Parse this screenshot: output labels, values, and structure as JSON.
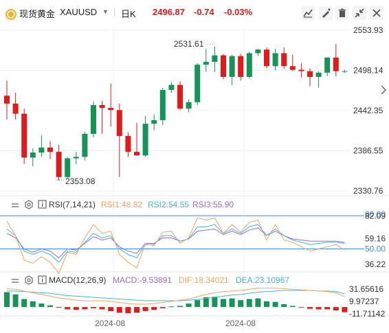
{
  "header": {
    "name": "现货黄金",
    "symbol": "XAUUSD",
    "period": "日K",
    "price": "2496.87",
    "change": "-0.74",
    "change_pct": "-0.03%"
  },
  "price_axis": [
    "2553.93",
    "2498.14",
    "2442.35",
    "2386.55",
    "2330.76"
  ],
  "high_label": "2531.61",
  "low_label": "2353.08",
  "rsi": {
    "name": "RSI(7,14,21)",
    "rsi1": "RSI1:48.82",
    "rsi2": "RSI2:54.55",
    "rsi3": "RSI3:55.90",
    "axis": [
      "80.00",
      "82.09",
      "59.16",
      "50.00",
      "36.22"
    ]
  },
  "macd": {
    "name": "MACD(12,26,9)",
    "macd": "MACD:-9.53891",
    "dif": "DIF:18.34021",
    "dea": "DEA:23.10967",
    "axis": [
      "31.65616",
      "9.97237",
      "-11.71142"
    ]
  },
  "x_labels": [
    "2024-08",
    "2024-08"
  ],
  "colors": {
    "up": "#159457",
    "down": "#e21a1a",
    "rsi1": "#f7a35c",
    "rsi2": "#3fb8d9",
    "rsi3": "#9b6bd1",
    "dif": "#f7a35c",
    "dea": "#3fb8d9",
    "ref_line": "#3d8df5"
  },
  "chart_data": {
    "type": "candlestick",
    "candles": [
      {
        "o": 2463,
        "h": 2484,
        "l": 2430,
        "c": 2452
      },
      {
        "o": 2452,
        "h": 2467,
        "l": 2430,
        "c": 2438
      },
      {
        "o": 2438,
        "h": 2445,
        "l": 2368,
        "c": 2377
      },
      {
        "o": 2377,
        "h": 2390,
        "l": 2365,
        "c": 2384
      },
      {
        "o": 2384,
        "h": 2408,
        "l": 2378,
        "c": 2391
      },
      {
        "o": 2391,
        "h": 2400,
        "l": 2375,
        "c": 2385
      },
      {
        "o": 2385,
        "h": 2395,
        "l": 2345,
        "c": 2350
      },
      {
        "o": 2350,
        "h": 2378,
        "l": 2348,
        "c": 2376
      },
      {
        "o": 2376,
        "h": 2385,
        "l": 2368,
        "c": 2378
      },
      {
        "o": 2378,
        "h": 2413,
        "l": 2373,
        "c": 2410
      },
      {
        "o": 2410,
        "h": 2455,
        "l": 2405,
        "c": 2450
      },
      {
        "o": 2450,
        "h": 2456,
        "l": 2410,
        "c": 2446
      },
      {
        "o": 2446,
        "h": 2480,
        "l": 2420,
        "c": 2443
      },
      {
        "o": 2443,
        "h": 2452,
        "l": 2350,
        "c": 2407
      },
      {
        "o": 2407,
        "h": 2412,
        "l": 2378,
        "c": 2385
      },
      {
        "o": 2385,
        "h": 2425,
        "l": 2380,
        "c": 2380
      },
      {
        "o": 2380,
        "h": 2435,
        "l": 2378,
        "c": 2424
      },
      {
        "o": 2424,
        "h": 2437,
        "l": 2415,
        "c": 2429
      },
      {
        "o": 2429,
        "h": 2474,
        "l": 2422,
        "c": 2471
      },
      {
        "o": 2471,
        "h": 2482,
        "l": 2467,
        "c": 2478
      },
      {
        "o": 2478,
        "h": 2483,
        "l": 2443,
        "c": 2445
      },
      {
        "o": 2445,
        "h": 2458,
        "l": 2440,
        "c": 2454
      },
      {
        "o": 2454,
        "h": 2508,
        "l": 2450,
        "c": 2506
      },
      {
        "o": 2506,
        "h": 2528,
        "l": 2496,
        "c": 2510
      },
      {
        "o": 2510,
        "h": 2531,
        "l": 2496,
        "c": 2519
      },
      {
        "o": 2519,
        "h": 2521,
        "l": 2486,
        "c": 2489
      },
      {
        "o": 2489,
        "h": 2520,
        "l": 2478,
        "c": 2518
      },
      {
        "o": 2518,
        "h": 2521,
        "l": 2484,
        "c": 2489
      },
      {
        "o": 2489,
        "h": 2524,
        "l": 2487,
        "c": 2522
      },
      {
        "o": 2522,
        "h": 2528,
        "l": 2518,
        "c": 2527
      },
      {
        "o": 2527,
        "h": 2530,
        "l": 2501,
        "c": 2504
      },
      {
        "o": 2504,
        "h": 2528,
        "l": 2498,
        "c": 2522
      },
      {
        "o": 2522,
        "h": 2530,
        "l": 2500,
        "c": 2504
      },
      {
        "o": 2504,
        "h": 2520,
        "l": 2497,
        "c": 2499
      },
      {
        "o": 2499,
        "h": 2508,
        "l": 2488,
        "c": 2497
      },
      {
        "o": 2497,
        "h": 2501,
        "l": 2476,
        "c": 2489
      },
      {
        "o": 2489,
        "h": 2497,
        "l": 2474,
        "c": 2495
      },
      {
        "o": 2495,
        "h": 2516,
        "l": 2490,
        "c": 2516
      },
      {
        "o": 2516,
        "h": 2535,
        "l": 2490,
        "c": 2497
      },
      {
        "o": 2497,
        "h": 2499,
        "l": 2495,
        "c": 2497
      }
    ],
    "rsi1": [
      75,
      62,
      40,
      37,
      43,
      38,
      28,
      47,
      45,
      60,
      72,
      64,
      66,
      45,
      38,
      33,
      55,
      53,
      65,
      66,
      55,
      60,
      78,
      76,
      78,
      64,
      72,
      65,
      74,
      76,
      58,
      72,
      58,
      56,
      52,
      48,
      50,
      52,
      54,
      49
    ],
    "rsi2": [
      68,
      62,
      48,
      45,
      48,
      45,
      38,
      48,
      47,
      56,
      64,
      60,
      62,
      50,
      45,
      42,
      54,
      54,
      62,
      62,
      57,
      59,
      70,
      70,
      72,
      64,
      68,
      64,
      70,
      72,
      62,
      68,
      62,
      58,
      56,
      54,
      55,
      56,
      56,
      55
    ],
    "rsi3": [
      64,
      60,
      50,
      47,
      50,
      48,
      42,
      50,
      49,
      55,
      61,
      58,
      60,
      52,
      48,
      46,
      55,
      55,
      60,
      60,
      57,
      59,
      66,
      67,
      68,
      63,
      66,
      63,
      67,
      69,
      62,
      66,
      62,
      59,
      58,
      57,
      57,
      57,
      57,
      56
    ],
    "macd_hist": [
      26,
      22,
      14,
      10,
      6,
      3,
      -1,
      -4,
      -5,
      -4,
      -2,
      -4,
      -7,
      -10,
      -11,
      -10,
      -7,
      -5,
      -2,
      1,
      2,
      6,
      12,
      17,
      18,
      14,
      15,
      12,
      14,
      15,
      10,
      9,
      5,
      2,
      -1,
      -3,
      -4,
      -4,
      -6,
      -9
    ],
    "dif": [
      32,
      31,
      28,
      25,
      22,
      19,
      16,
      14,
      12,
      11,
      11,
      11,
      10,
      8,
      6,
      5,
      5,
      6,
      8,
      10,
      12,
      14,
      18,
      22,
      25,
      27,
      28,
      29,
      31,
      33,
      33,
      33,
      32,
      31,
      30,
      29,
      28,
      27,
      25,
      18
    ],
    "dea": [
      28,
      28,
      27,
      26,
      25,
      24,
      22,
      20,
      19,
      18,
      17,
      16,
      15,
      14,
      13,
      12,
      11,
      11,
      11,
      11,
      11,
      12,
      13,
      15,
      17,
      19,
      21,
      22,
      24,
      26,
      27,
      28,
      29,
      29,
      29,
      29,
      28,
      28,
      27,
      23
    ]
  }
}
